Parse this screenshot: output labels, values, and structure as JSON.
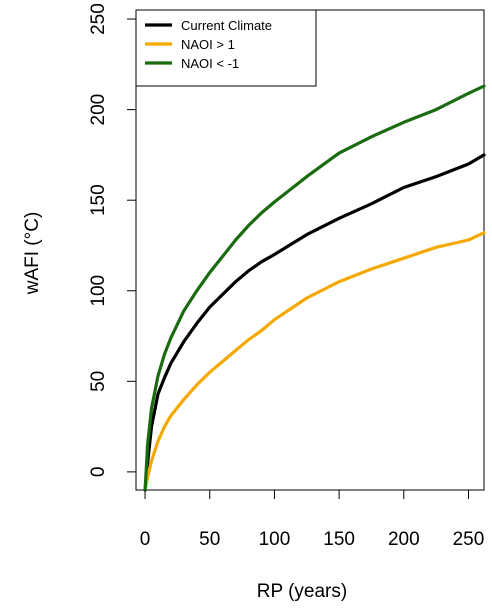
{
  "chart_data": {
    "type": "line",
    "title": "",
    "xlabel": "RP (years)",
    "ylabel": "wAFI (°C)",
    "xlim": [
      -7,
      262
    ],
    "ylim": [
      -10,
      255
    ],
    "xticks": [
      0,
      50,
      100,
      150,
      200,
      250
    ],
    "yticks": [
      0,
      50,
      100,
      150,
      200,
      250
    ],
    "grid": false,
    "legend_position": "top-left",
    "series": [
      {
        "name": "Current Climate",
        "color": "#000000",
        "x": [
          0,
          2,
          5,
          10,
          15,
          20,
          30,
          40,
          50,
          60,
          70,
          80,
          90,
          100,
          125,
          150,
          175,
          200,
          225,
          250,
          262
        ],
        "y": [
          -10,
          5,
          25,
          43,
          52,
          60,
          72,
          82,
          91,
          98,
          105,
          111,
          116,
          120,
          131,
          140,
          148,
          157,
          163,
          170,
          175
        ]
      },
      {
        "name": "NAOI > 1",
        "color": "#f5a800",
        "x": [
          0,
          2,
          5,
          10,
          15,
          20,
          30,
          40,
          50,
          60,
          70,
          80,
          90,
          100,
          125,
          150,
          175,
          200,
          225,
          250,
          262
        ],
        "y": [
          -10,
          -3,
          6,
          17,
          25,
          31,
          40,
          48,
          55,
          61,
          67,
          73,
          78,
          84,
          96,
          105,
          112,
          118,
          124,
          128,
          132
        ]
      },
      {
        "name": "NAOI < -1",
        "color": "#1a6b0f",
        "x": [
          0,
          2,
          5,
          10,
          15,
          20,
          30,
          40,
          50,
          60,
          70,
          80,
          90,
          100,
          125,
          150,
          175,
          200,
          225,
          250,
          262
        ],
        "y": [
          -10,
          15,
          35,
          53,
          65,
          74,
          89,
          100,
          110,
          119,
          128,
          136,
          143,
          149,
          163,
          176,
          185,
          193,
          200,
          209,
          213
        ]
      }
    ]
  }
}
